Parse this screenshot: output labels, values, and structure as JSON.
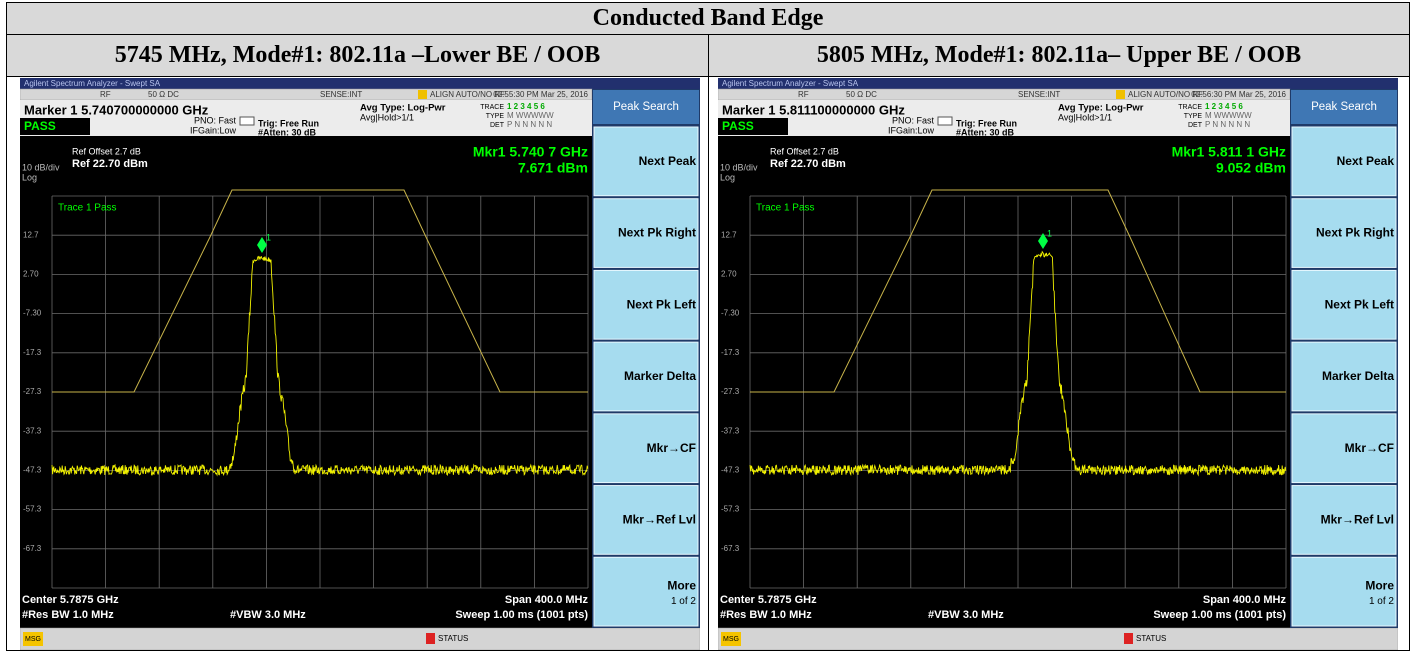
{
  "header": {
    "title": "Conducted Band Edge"
  },
  "panels": [
    {
      "heading": "5745 MHz, Mode#1: 802.11a  –Lower BE / OOB",
      "app_title": "Agilent Spectrum Analyzer - Swept SA",
      "status_row": [
        "RF",
        "50 Ω  DC",
        "SENSE:INT",
        "ALIGN AUTO/NO RF",
        "02:55:30 PM Mar 25, 2016"
      ],
      "marker": "Marker 1 5.740700000000 GHz",
      "pass": "PASS",
      "pno": "PNO: Fast",
      "ifgain": "IFGain:Low",
      "trig": "Trig: Free Run",
      "atten": "#Atten: 30 dB",
      "avg_type": "Avg Type: Log-Pwr",
      "avg_hold": "Avg|Hold>1/1",
      "trace_info": [
        [
          "TRACE",
          "1 2 3 4 5 6"
        ],
        [
          "TYPE",
          "M WWWWW"
        ],
        [
          "DET",
          "P N N N N N"
        ]
      ],
      "ref_offset": "Ref Offset 2.7 dB",
      "ref": "Ref 22.70 dBm",
      "scale": "10 dB/div",
      "log": "Log",
      "trace_label": "Trace 1 Pass",
      "mkr_freq": "Mkr1 5.740 7 GHz",
      "mkr_level": "7.671 dBm",
      "marker_number": "1",
      "y_labels": [
        "12.7",
        "2.70",
        "-7.30",
        "-17.3",
        "-27.3",
        "-37.3",
        "-47.3",
        "-57.3",
        "-67.3"
      ],
      "center": "Center 5.7875 GHz",
      "span": "Span 400.0 MHz",
      "res_bw": "#Res BW 1.0 MHz",
      "vbw": "#VBW 3.0 MHz",
      "sweep": "Sweep  1.00 ms (1001 pts)",
      "softkey_title": "Peak Search",
      "softkeys": [
        "Next Peak",
        "Next Pk Right",
        "Next Pk Left",
        "Marker Delta",
        "Mkr→CF",
        "Mkr→Ref Lvl",
        "More"
      ],
      "softkey_page": "1 of 2",
      "msg": "MSG",
      "status": "STATUS"
    },
    {
      "heading": "5805 MHz, Mode#1: 802.11a– Upper BE / OOB",
      "app_title": "Agilent Spectrum Analyzer - Swept SA",
      "status_row": [
        "RF",
        "50 Ω  DC",
        "SENSE:INT",
        "ALIGN AUTO/NO RF",
        "02:56:30 PM Mar 25, 2016"
      ],
      "marker": "Marker 1 5.811100000000 GHz",
      "pass": "PASS",
      "pno": "PNO: Fast",
      "ifgain": "IFGain:Low",
      "trig": "Trig: Free Run",
      "atten": "#Atten: 30 dB",
      "avg_type": "Avg Type: Log-Pwr",
      "avg_hold": "Avg|Hold>1/1",
      "trace_info": [
        [
          "TRACE",
          "1 2 3 4 5 6"
        ],
        [
          "TYPE",
          "M WWWWW"
        ],
        [
          "DET",
          "P N N N N N"
        ]
      ],
      "ref_offset": "Ref Offset 2.7 dB",
      "ref": "Ref 22.70 dBm",
      "scale": "10 dB/div",
      "log": "Log",
      "trace_label": "Trace 1 Pass",
      "mkr_freq": "Mkr1 5.811 1 GHz",
      "mkr_level": "9.052 dBm",
      "marker_number": "1",
      "y_labels": [
        "12.7",
        "2.70",
        "-7.30",
        "-17.3",
        "-27.3",
        "-37.3",
        "-47.3",
        "-57.3",
        "-67.3"
      ],
      "center": "Center 5.7875 GHz",
      "span": "Span 400.0 MHz",
      "res_bw": "#Res BW 1.0 MHz",
      "vbw": "#VBW 3.0 MHz",
      "sweep": "Sweep  1.00 ms (1001 pts)",
      "softkey_title": "Peak Search",
      "softkeys": [
        "Next Peak",
        "Next Pk Right",
        "Next Pk Left",
        "Marker Delta",
        "Mkr→CF",
        "Mkr→Ref Lvl",
        "More"
      ],
      "softkey_page": "1 of 2",
      "msg": "MSG",
      "status": "STATUS"
    }
  ]
}
